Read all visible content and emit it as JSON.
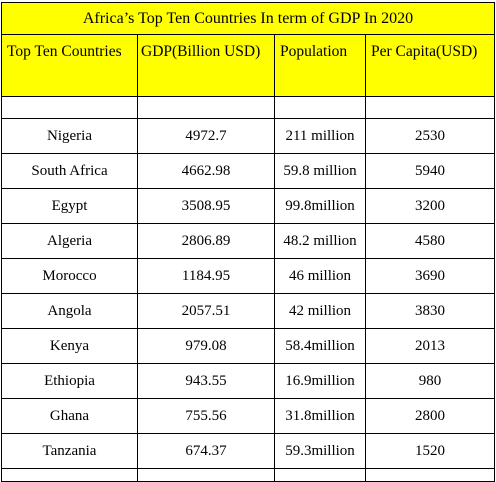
{
  "title": "Africa’s Top Ten Countries In term of GDP In 2020",
  "headers": [
    "Top Ten Countries",
    "GDP(Billion USD)",
    "Population",
    "Per Capita(USD)"
  ],
  "rows": [
    {
      "country": "Nigeria",
      "gdp": "4972.7",
      "population": "211 million",
      "per_capita": "2530"
    },
    {
      "country": "South Africa",
      "gdp": "4662.98",
      "population": "59.8 million",
      "per_capita": "5940"
    },
    {
      "country": "Egypt",
      "gdp": "3508.95",
      "population": "99.8million",
      "per_capita": "3200"
    },
    {
      "country": "Algeria",
      "gdp": "2806.89",
      "population": "48.2 million",
      "per_capita": "4580"
    },
    {
      "country": "Morocco",
      "gdp": "1184.95",
      "population": "46 million",
      "per_capita": "3690"
    },
    {
      "country": "Angola",
      "gdp": "2057.51",
      "population": "42 million",
      "per_capita": "3830"
    },
    {
      "country": "Kenya",
      "gdp": "979.08",
      "population": "58.4million",
      "per_capita": "2013"
    },
    {
      "country": "Ethiopia",
      "gdp": "943.55",
      "population": "16.9million",
      "per_capita": "980"
    },
    {
      "country": "Ghana",
      "gdp": "755.56",
      "population": "31.8million",
      "per_capita": "2800"
    },
    {
      "country": "Tanzania",
      "gdp": "674.37",
      "population": "59.3million",
      "per_capita": "1520"
    }
  ],
  "colors": {
    "header_background": "#ffff00",
    "border": "#000000",
    "background": "#ffffff"
  }
}
